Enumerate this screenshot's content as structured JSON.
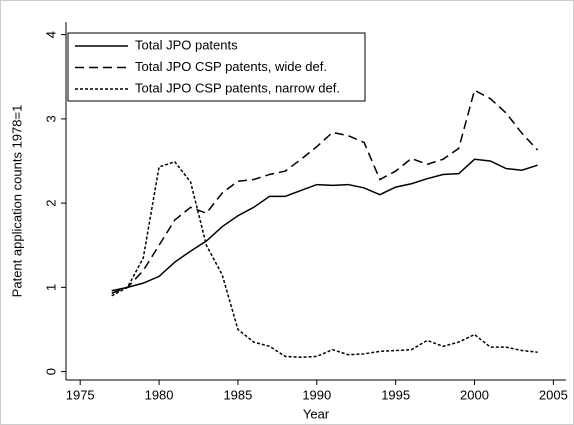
{
  "chart_data": {
    "type": "line",
    "x_label": "Year",
    "y_label": "Patent application counts 1978=1",
    "x": [
      1977,
      1978,
      1979,
      1980,
      1981,
      1982,
      1983,
      1984,
      1985,
      1986,
      1987,
      1988,
      1989,
      1990,
      1991,
      1992,
      1993,
      1994,
      1995,
      1996,
      1997,
      1998,
      1999,
      2000,
      2001,
      2002,
      2003,
      2004
    ],
    "series": [
      {
        "name": "Total JPO patents",
        "color": "#000000",
        "dash": "solid",
        "values": [
          0.96,
          1.0,
          1.05,
          1.13,
          1.3,
          1.43,
          1.55,
          1.72,
          1.85,
          1.95,
          2.08,
          2.08,
          2.15,
          2.22,
          2.21,
          2.22,
          2.18,
          2.1,
          2.19,
          2.23,
          2.29,
          2.34,
          2.35,
          2.52,
          2.5,
          2.41,
          2.39,
          2.45
        ]
      },
      {
        "name": "Total JPO CSP patents, wide def.",
        "color": "#000000",
        "dash": "long",
        "values": [
          0.93,
          1.0,
          1.2,
          1.5,
          1.8,
          1.95,
          1.88,
          2.12,
          2.26,
          2.28,
          2.34,
          2.38,
          2.52,
          2.67,
          2.84,
          2.8,
          2.72,
          2.28,
          2.38,
          2.53,
          2.46,
          2.52,
          2.65,
          3.34,
          3.24,
          3.07,
          2.83,
          2.63
        ]
      },
      {
        "name": "Total JPO CSP patents, narrow def.",
        "color": "#000000",
        "dash": "short",
        "values": [
          0.9,
          1.0,
          1.35,
          2.43,
          2.49,
          2.25,
          1.5,
          1.15,
          0.5,
          0.35,
          0.3,
          0.18,
          0.17,
          0.18,
          0.26,
          0.2,
          0.21,
          0.24,
          0.25,
          0.26,
          0.37,
          0.3,
          0.35,
          0.44,
          0.29,
          0.29,
          0.25,
          0.23
        ]
      }
    ],
    "xlim": [
      1974.1,
      2005.8
    ],
    "xticks": [
      1975,
      1980,
      1985,
      1990,
      1995,
      2000,
      2005
    ],
    "ylim": [
      -0.1,
      4.15
    ],
    "yticks": [
      0,
      1,
      2,
      3,
      4
    ],
    "grid": false,
    "legend": "top-left"
  }
}
